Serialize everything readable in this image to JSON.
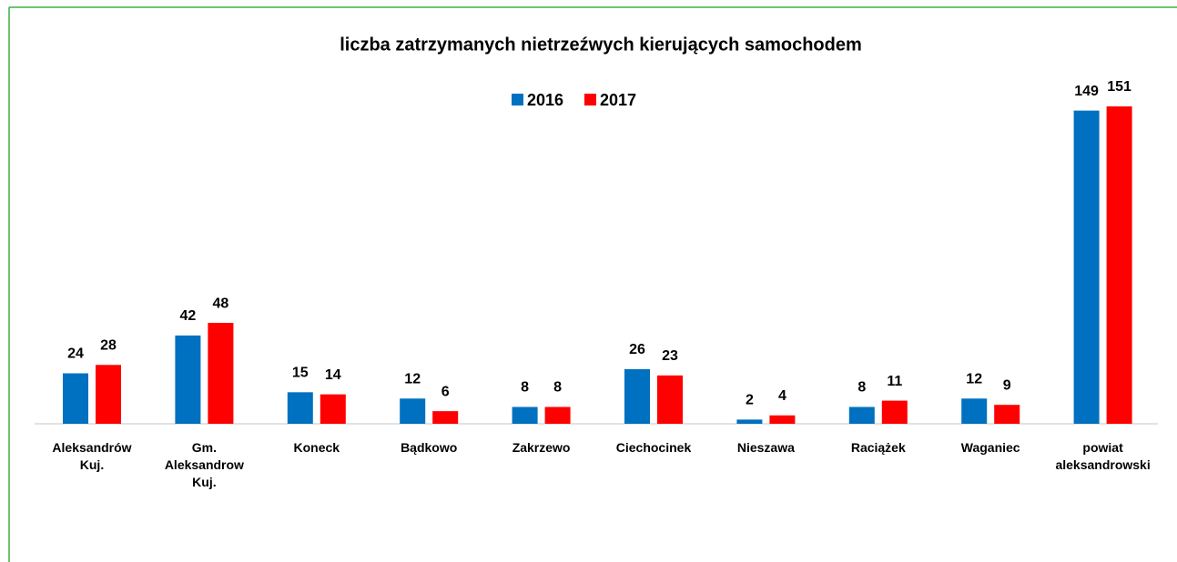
{
  "chart_data": {
    "type": "bar",
    "title": "liczba zatrzymanych nietrzeźwych kierujących samochodem",
    "categories": [
      "Aleksandrów\nKuj.",
      "Gm.\nAleksandrow\nKuj.",
      "Koneck",
      "Bądkowo",
      "Zakrzewo",
      "Ciechocinek",
      "Nieszawa",
      "Raciążek",
      "Waganiec",
      "powiat\naleksandrowski"
    ],
    "series": [
      {
        "name": "2016",
        "color": "#0070c0",
        "values": [
          24,
          42,
          15,
          12,
          8,
          26,
          2,
          8,
          12,
          149
        ]
      },
      {
        "name": "2017",
        "color": "#ff0000",
        "values": [
          28,
          48,
          14,
          6,
          8,
          23,
          4,
          11,
          9,
          151
        ]
      }
    ],
    "legend": "top"
  }
}
